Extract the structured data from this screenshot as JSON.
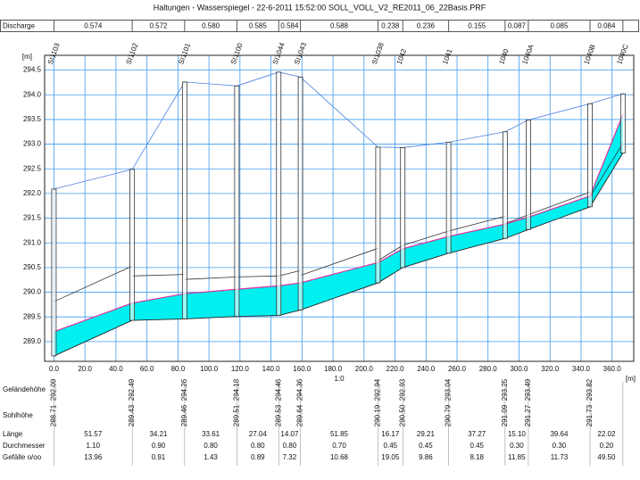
{
  "chart_data": {
    "type": "profile",
    "title": "Haltungen - Wasserspiegel - 22-6-2011 15:52:00 SOLL_VOLL_V2_RE2011_06_22Basis.PRF",
    "y_label": "[m]",
    "x_label": "[m]",
    "scale_label": "1:0",
    "manholes": [
      "SI1103",
      "SI1102",
      "SI1101",
      "SI1100",
      "SI1044",
      "SI1043",
      "SI1038",
      "1042",
      "1041",
      "1040",
      "1040A",
      "1040B",
      "1040C"
    ],
    "x": [
      0,
      50.5,
      84.3,
      118,
      145,
      159,
      209,
      225,
      254.6,
      291,
      306,
      345.8,
      367
    ],
    "xlim": [
      -6,
      374
    ],
    "xticks": [
      {
        "value": 0,
        "label": "0.0"
      },
      {
        "value": 20,
        "label": "20.0"
      },
      {
        "value": 40,
        "label": "40.0"
      },
      {
        "value": 60,
        "label": "60.0"
      },
      {
        "value": 80,
        "label": "80.0"
      },
      {
        "value": 100,
        "label": "100.0"
      },
      {
        "value": 120,
        "label": "120.0"
      },
      {
        "value": 140,
        "label": "140.0"
      },
      {
        "value": 160,
        "label": "160.0"
      },
      {
        "value": 180,
        "label": "180.0"
      },
      {
        "value": 200,
        "label": "200.0"
      },
      {
        "value": 220,
        "label": "220.0"
      },
      {
        "value": 240,
        "label": "240.0"
      },
      {
        "value": 260,
        "label": "260.0"
      },
      {
        "value": 280,
        "label": "280.0"
      },
      {
        "value": 300,
        "label": "300.0"
      },
      {
        "value": 320,
        "label": "320.0"
      },
      {
        "value": 340,
        "label": "340.0"
      },
      {
        "value": 360,
        "label": "360.0"
      }
    ],
    "ylim": [
      288.6,
      294.8
    ],
    "yticks": [
      {
        "value": 289,
        "label": "289.0"
      },
      289.5,
      {
        "value": 290,
        "label": "290.0"
      },
      290.5,
      {
        "value": 291,
        "label": "291.0"
      },
      291.5,
      {
        "value": 292,
        "label": "292.0"
      },
      292.5,
      {
        "value": 293,
        "label": "293.0"
      },
      293.5,
      {
        "value": 294,
        "label": "294.0"
      },
      294.5
    ],
    "grid": true,
    "grid_color": "#3c9cf0",
    "ground": {
      "name": "Geländehöhe",
      "color": "#4a7fe0",
      "values": [
        292.09,
        292.49,
        294.26,
        294.18,
        294.46,
        294.36,
        292.94,
        292.93,
        293.04,
        293.25,
        293.49,
        293.82,
        294.02
      ],
      "value_labels": [
        "292.09",
        "292.49",
        "294.26",
        "294.18",
        "294.46",
        "294.36",
        "292.94",
        "292.93",
        "293.04",
        "293.25",
        "293.49",
        "293.82",
        null
      ]
    },
    "invert": {
      "name": "Sohlhöhe",
      "color": "#222222",
      "values": [
        288.71,
        289.43,
        289.46,
        289.51,
        289.53,
        289.64,
        290.19,
        290.5,
        290.79,
        291.09,
        291.27,
        291.73,
        292.82
      ],
      "value_labels": [
        "288.71",
        "289.43",
        "289.46",
        "289.51",
        "289.53",
        "289.64",
        "290.19",
        "290.50",
        "290.79",
        "291.09",
        "291.27",
        "291.73",
        null
      ]
    },
    "water": {
      "color": "#e0309a",
      "fill": "#00f0f0",
      "values": [
        289.2,
        289.78,
        289.97,
        290.06,
        290.13,
        290.19,
        290.6,
        290.88,
        291.13,
        291.38,
        291.52,
        291.95,
        293.6
      ]
    },
    "discharge": {
      "name": "Discharge",
      "values": [
        0.574,
        0.572,
        0.58,
        0.585,
        0.584,
        0.588,
        0.238,
        0.236,
        0.155,
        0.087,
        0.085,
        0.084
      ],
      "value_labels": [
        "0.574",
        "0.572",
        "0.580",
        "0.585",
        "0.584",
        "0.588",
        "0.238",
        "0.236",
        "0.155",
        "0.087",
        "0.085",
        "0.084"
      ]
    },
    "length": {
      "name": "Länge",
      "values": [
        51.57,
        34.21,
        33.61,
        27.04,
        14.07,
        51.85,
        16.17,
        29.21,
        37.27,
        15.1,
        39.64,
        22.02
      ],
      "value_labels": [
        "51.57",
        "34.21",
        "33.61",
        "27.04",
        "14.07",
        "51.85",
        "16.17",
        "29.21",
        "37.27",
        "15.10",
        "39.64",
        "22.02"
      ]
    },
    "diameter": {
      "name": "Durchmesser",
      "color": "#333333",
      "values": [
        1.1,
        0.9,
        0.8,
        0.8,
        0.8,
        0.7,
        0.45,
        0.45,
        0.45,
        0.3,
        0.3,
        0.2
      ],
      "value_labels": [
        "1.10",
        "0.90",
        "0.80",
        "0.80",
        "0.80",
        "0.70",
        "0.45",
        "0.45",
        "0.45",
        "0.30",
        "0.30",
        "0.20"
      ]
    },
    "slope": {
      "name": "Gefälle o/oo",
      "values": [
        13.96,
        0.91,
        1.43,
        0.89,
        7.32,
        10.68,
        19.05,
        9.86,
        8.18,
        11.85,
        11.73,
        49.5
      ],
      "value_labels": [
        "13.96",
        "0.91",
        "1.43",
        "0.89",
        "7.32",
        "10.68",
        "19.05",
        "9.86",
        "8.18",
        "11.85",
        "11.73",
        "49.50"
      ]
    }
  }
}
